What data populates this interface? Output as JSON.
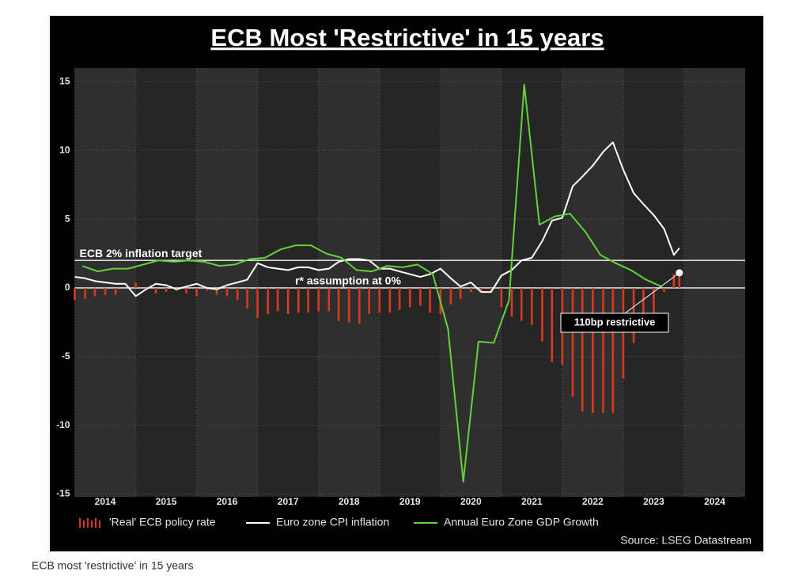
{
  "chart_data": {
    "type": "combo",
    "title": "ECB Most 'Restrictive' in 15 years",
    "source": "Source: LSEG Datastream",
    "caption": "ECB most 'restrictive' in 15 years",
    "xlim": [
      2014,
      2025
    ],
    "xticks": [
      {
        "value": 2014.5,
        "label": "2014"
      },
      {
        "value": 2015.5,
        "label": "2015"
      },
      {
        "value": 2016.5,
        "label": "2016"
      },
      {
        "value": 2017.5,
        "label": "2017"
      },
      {
        "value": 2018.5,
        "label": "2018"
      },
      {
        "value": 2019.5,
        "label": "2019"
      },
      {
        "value": 2020.5,
        "label": "2020"
      },
      {
        "value": 2021.5,
        "label": "2021"
      },
      {
        "value": 2022.5,
        "label": "2022"
      },
      {
        "value": 2023.5,
        "label": "2023"
      },
      {
        "value": 2024.5,
        "label": "2024"
      }
    ],
    "ylim": [
      -15.2,
      16
    ],
    "yticks": [
      15,
      10,
      5,
      0,
      -5,
      -10,
      -15
    ],
    "grid": true,
    "hlines": [
      {
        "value": 2,
        "label": "ECB 2% inflation target"
      },
      {
        "value": 0,
        "label": "r* assumption at 0%"
      }
    ],
    "callout": "110bp restrictive",
    "series": [
      {
        "name": "'Real' ECB policy rate",
        "type": "bar",
        "color": "#d8391f",
        "x": [
          2014,
          2014.17,
          2014.33,
          2014.5,
          2014.67,
          2014.83,
          2015,
          2015.17,
          2015.33,
          2015.5,
          2015.67,
          2015.83,
          2016,
          2016.17,
          2016.33,
          2016.5,
          2016.67,
          2016.83,
          2017,
          2017.17,
          2017.33,
          2017.5,
          2017.67,
          2017.83,
          2018,
          2018.17,
          2018.33,
          2018.5,
          2018.67,
          2018.83,
          2019,
          2019.17,
          2019.33,
          2019.5,
          2019.67,
          2019.83,
          2020,
          2020.17,
          2020.33,
          2020.5,
          2020.67,
          2020.83,
          2021,
          2021.17,
          2021.33,
          2021.5,
          2021.67,
          2021.83,
          2022,
          2022.17,
          2022.33,
          2022.5,
          2022.67,
          2022.83,
          2023,
          2023.17,
          2023.33,
          2023.5,
          2023.67,
          2023.83,
          2023.92
        ],
        "values": [
          -0.9,
          -0.8,
          -0.6,
          -0.5,
          -0.5,
          0.0,
          0.4,
          -0.1,
          -0.4,
          -0.3,
          -0.2,
          -0.4,
          -0.6,
          -0.2,
          -0.5,
          -0.6,
          -0.9,
          -1.5,
          -2.2,
          -1.9,
          -1.7,
          -1.9,
          -1.8,
          -1.8,
          -1.7,
          -1.7,
          -2.4,
          -2.5,
          -2.6,
          -1.9,
          -1.8,
          -1.8,
          -1.6,
          -1.4,
          -1.3,
          -1.8,
          -1.9,
          -1.2,
          -0.8,
          -0.3,
          -0.2,
          -0.2,
          -1.4,
          -2.1,
          -2.4,
          -2.7,
          -3.9,
          -5.4,
          -5.6,
          -7.9,
          -9.0,
          -9.1,
          -9.1,
          -9.1,
          -6.6,
          -4.0,
          -2.9,
          -1.8,
          -0.3,
          1.0,
          1.1
        ]
      },
      {
        "name": "Euro zone CPI inflation",
        "type": "line",
        "color": "#ffffff",
        "x": [
          2014,
          2014.17,
          2014.33,
          2014.5,
          2014.67,
          2014.83,
          2015,
          2015.17,
          2015.33,
          2015.5,
          2015.67,
          2015.83,
          2016,
          2016.17,
          2016.33,
          2016.5,
          2016.67,
          2016.83,
          2017,
          2017.17,
          2017.33,
          2017.5,
          2017.67,
          2017.83,
          2018,
          2018.17,
          2018.33,
          2018.5,
          2018.67,
          2018.83,
          2019,
          2019.17,
          2019.33,
          2019.5,
          2019.67,
          2019.83,
          2020,
          2020.17,
          2020.33,
          2020.5,
          2020.67,
          2020.83,
          2021,
          2021.17,
          2021.33,
          2021.5,
          2021.67,
          2021.83,
          2022,
          2022.17,
          2022.33,
          2022.5,
          2022.67,
          2022.83,
          2023,
          2023.17,
          2023.33,
          2023.5,
          2023.67,
          2023.83,
          2023.92
        ],
        "values": [
          0.8,
          0.7,
          0.5,
          0.4,
          0.3,
          0.3,
          -0.6,
          -0.1,
          0.3,
          0.2,
          -0.1,
          0.1,
          0.3,
          0.0,
          -0.1,
          0.2,
          0.4,
          0.6,
          1.8,
          1.5,
          1.4,
          1.3,
          1.5,
          1.5,
          1.3,
          1.4,
          1.9,
          2.1,
          2.1,
          2.0,
          1.4,
          1.4,
          1.2,
          1.0,
          0.8,
          1.0,
          1.4,
          0.7,
          0.1,
          0.4,
          -0.3,
          -0.3,
          0.9,
          1.3,
          2.0,
          2.2,
          3.4,
          4.9,
          5.1,
          7.4,
          8.1,
          8.9,
          9.9,
          10.6,
          8.6,
          6.9,
          6.1,
          5.3,
          4.3,
          2.4,
          2.9
        ]
      },
      {
        "name": "Annual Euro Zone GDP Growth",
        "type": "line",
        "color": "#5fd33c",
        "x": [
          2014.125,
          2014.375,
          2014.625,
          2014.875,
          2015.125,
          2015.375,
          2015.625,
          2015.875,
          2016.125,
          2016.375,
          2016.625,
          2016.875,
          2017.125,
          2017.375,
          2017.625,
          2017.875,
          2018.125,
          2018.375,
          2018.625,
          2018.875,
          2019.125,
          2019.375,
          2019.625,
          2019.875,
          2020.125,
          2020.375,
          2020.625,
          2020.875,
          2021.125,
          2021.375,
          2021.625,
          2021.875,
          2022.125,
          2022.375,
          2022.625,
          2022.875,
          2023.125,
          2023.375,
          2023.625
        ],
        "values": [
          1.6,
          1.2,
          1.4,
          1.4,
          1.7,
          2.0,
          1.9,
          2.0,
          1.9,
          1.6,
          1.7,
          2.1,
          2.2,
          2.8,
          3.1,
          3.1,
          2.5,
          2.2,
          1.3,
          1.2,
          1.6,
          1.5,
          1.7,
          1.0,
          -3.0,
          -14.1,
          -3.9,
          -4.0,
          -0.9,
          14.8,
          4.6,
          5.2,
          5.4,
          4.1,
          2.4,
          1.8,
          1.3,
          0.6,
          0.1
        ]
      }
    ]
  }
}
